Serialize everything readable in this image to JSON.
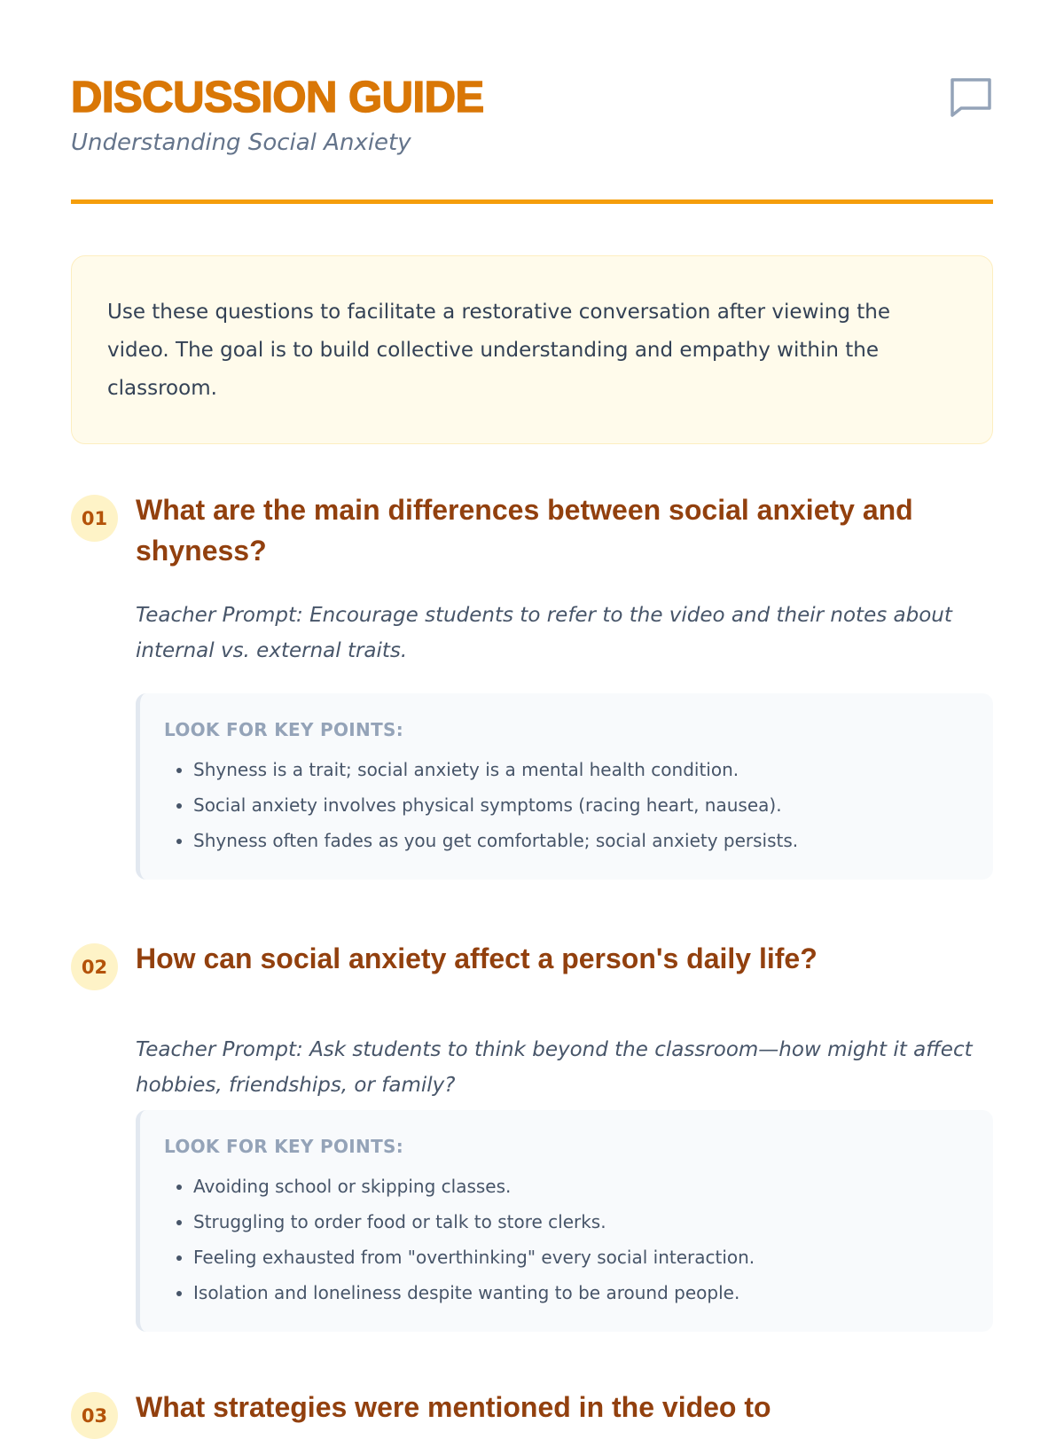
{
  "header": {
    "title": "DISCUSSION GUIDE",
    "subtitle": "Understanding Social Anxiety",
    "icon": "chat-bubble-icon"
  },
  "colors": {
    "accent": "#d97706",
    "rule": "#f59e0b",
    "heading": "#92400e",
    "intro_bg": "#fffbeb",
    "keypoints_bg": "#f8fafc"
  },
  "intro": "Use these questions to facilitate a restorative conversation after viewing the video. The goal is to build collective understanding and empathy within the classroom.",
  "questions": [
    {
      "number": "01",
      "title": "What are the main differences between social anxiety and shyness?",
      "prompt": "Teacher Prompt: Encourage students to refer to the video and their notes about internal vs. external traits.",
      "key_label": "LOOK FOR KEY POINTS:",
      "points": [
        "Shyness is a trait; social anxiety is a mental health condition.",
        "Social anxiety involves physical symptoms (racing heart, nausea).",
        "Shyness often fades as you get comfortable; social anxiety persists."
      ]
    },
    {
      "number": "02",
      "title": "How can social anxiety affect a person's daily life?",
      "prompt": "Teacher Prompt: Ask students to think beyond the classroom—how might it affect hobbies, friendships, or family?",
      "key_label": "LOOK FOR KEY POINTS:",
      "points": [
        "Avoiding school or skipping classes.",
        "Struggling to order food or talk to store clerks.",
        "Feeling exhausted from \"overthinking\" every social interaction.",
        "Isolation and loneliness despite wanting to be around people."
      ]
    },
    {
      "number": "03",
      "title": "What strategies were mentioned in the video to"
    }
  ]
}
